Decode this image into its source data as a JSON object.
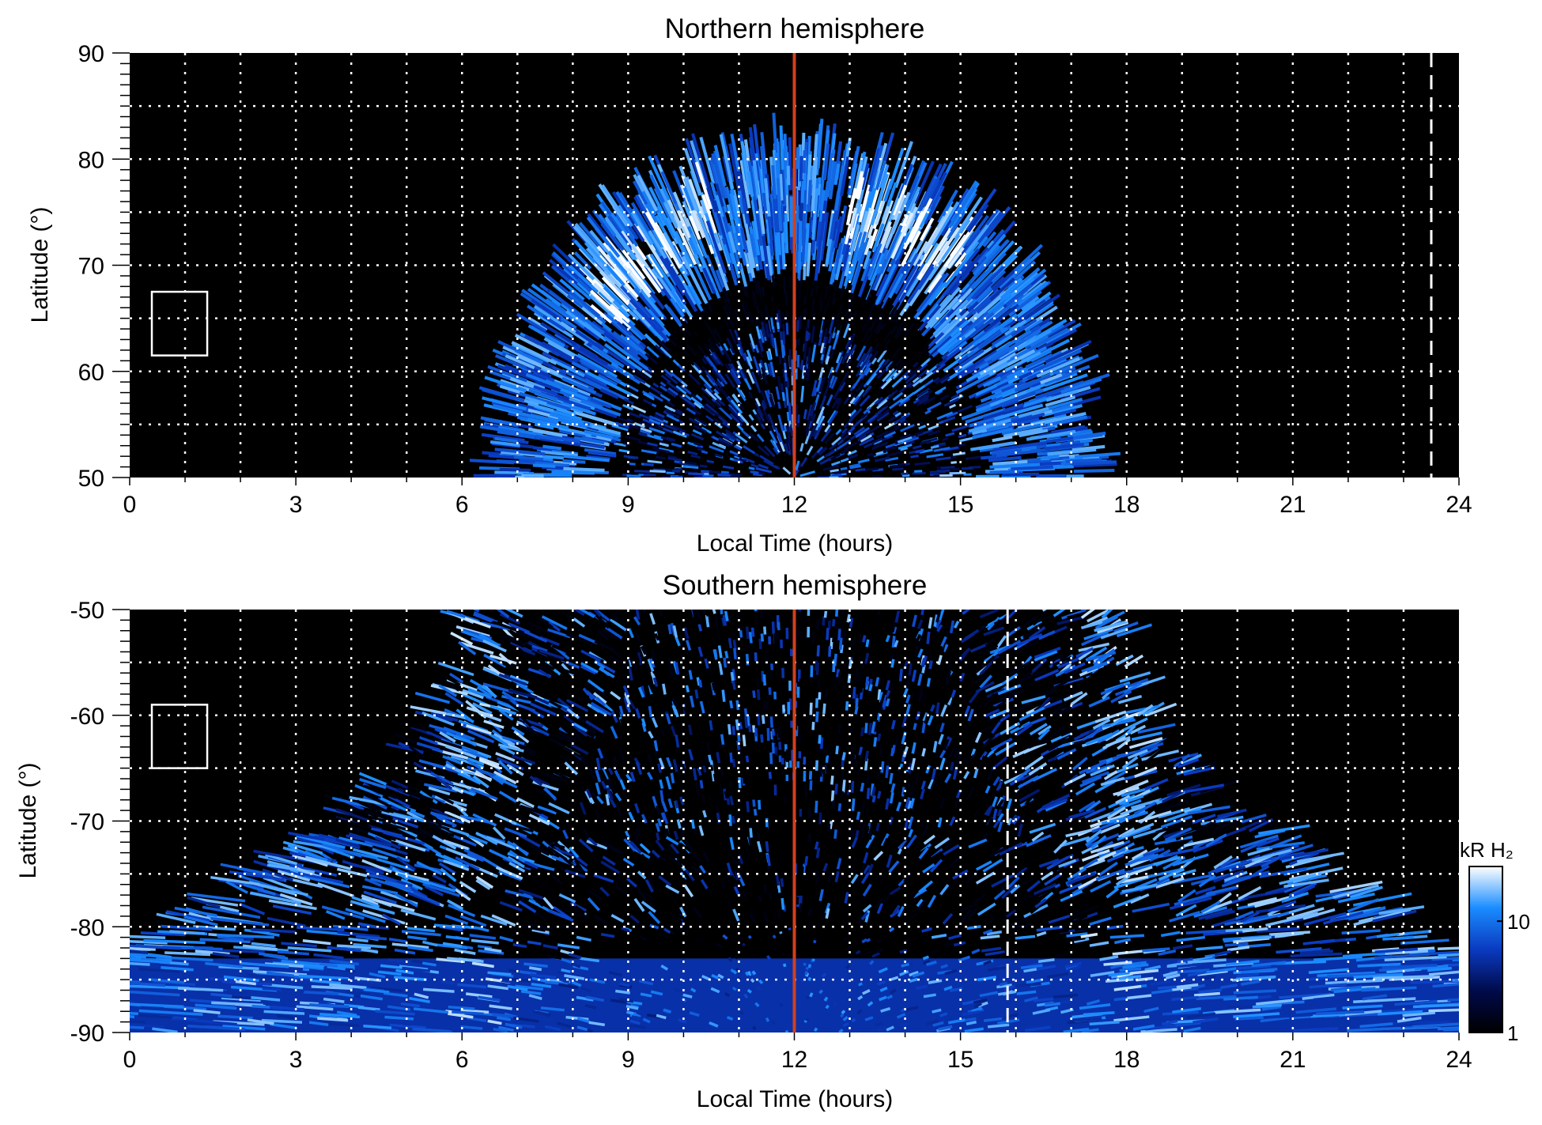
{
  "chart_data": {
    "type": "heatmap",
    "panels": [
      {
        "id": "north",
        "title": "Northern hemisphere",
        "xlabel": "Local Time (hours)",
        "ylabel": "Latitude (°)",
        "xlim": [
          0,
          24
        ],
        "ylim": [
          50,
          90
        ],
        "xticks": [
          0,
          3,
          6,
          9,
          12,
          15,
          18,
          21,
          24
        ],
        "xtick_labels": [
          "0",
          "3",
          "6",
          "9",
          "12",
          "15",
          "18",
          "21",
          "24"
        ],
        "yticks": [
          50,
          60,
          70,
          80,
          90
        ],
        "ytick_labels": [
          "50",
          "60",
          "70",
          "80",
          "90"
        ],
        "grid": {
          "x_step": 1,
          "y_step": 5,
          "style": "dotted",
          "color": "#ffffff"
        },
        "noon_line": {
          "x": 12,
          "color": "#d2401c"
        },
        "dashed_line": {
          "x": 23.5,
          "color": "#ffffff"
        },
        "box": {
          "x": [
            0.4,
            1.4
          ],
          "y": [
            61.5,
            67.5
          ]
        },
        "emission_region": {
          "lt_range_at_base": [
            7.0,
            17.2
          ],
          "max_lat": 80,
          "bright_ring_lat": [
            65,
            79
          ]
        }
      },
      {
        "id": "south",
        "title": "Southern hemisphere",
        "xlabel": "Local Time (hours)",
        "ylabel": "Latitude (°)",
        "xlim": [
          0,
          24
        ],
        "ylim": [
          -90,
          -50
        ],
        "xticks": [
          0,
          3,
          6,
          9,
          12,
          15,
          18,
          21,
          24
        ],
        "xtick_labels": [
          "0",
          "3",
          "6",
          "9",
          "12",
          "15",
          "18",
          "21",
          "24"
        ],
        "yticks": [
          -90,
          -80,
          -70,
          -60,
          -50
        ],
        "ytick_labels": [
          "-90",
          "-80",
          "-70",
          "-60",
          "-50"
        ],
        "grid": {
          "x_step": 1,
          "y_step": 5,
          "style": "dotted",
          "color": "#ffffff"
        },
        "noon_line": {
          "x": 12,
          "color": "#d2401c"
        },
        "dashed_line": {
          "x": 15.85,
          "color": "#ffffff"
        },
        "box": {
          "x": [
            0.4,
            1.4
          ],
          "y": [
            -65,
            -59
          ]
        },
        "emission_region": {
          "lt_range_at_top": [
            6.3,
            18.0
          ],
          "full_width_below_lat": -83,
          "bright_bands_lt": [
            6.5,
            17.7
          ]
        }
      }
    ],
    "colorbar": {
      "label": "kR H₂",
      "scale": "log",
      "range": [
        1,
        31
      ],
      "ticks": [
        1,
        10
      ],
      "tick_labels": [
        "1",
        "10"
      ],
      "colors": [
        "#000000",
        "#000a4a",
        "#0a3ac0",
        "#1a8cff",
        "#ffffff"
      ]
    }
  }
}
